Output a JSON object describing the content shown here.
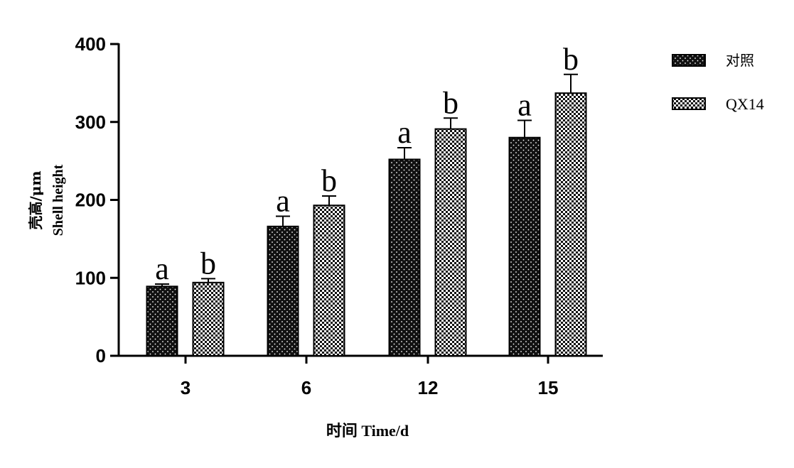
{
  "chart_data": {
    "type": "bar",
    "title": "",
    "xlabel": "时间  Time/d",
    "ylabel_lines": [
      "壳高/μm",
      "Shell height"
    ],
    "categories": [
      "3",
      "6",
      "12",
      "15"
    ],
    "ylim": [
      0,
      400
    ],
    "yticks": [
      0,
      100,
      200,
      300,
      400
    ],
    "grid": false,
    "legend_position": "top-right",
    "series": [
      {
        "name": "对照",
        "pattern": "dark-dotted",
        "values": [
          89,
          166,
          252,
          280
        ],
        "errors": [
          3,
          13,
          15,
          22
        ],
        "letters": [
          "a",
          "a",
          "a",
          "a"
        ]
      },
      {
        "name": "QX14",
        "pattern": "checkered",
        "values": [
          94,
          193,
          291,
          337
        ],
        "errors": [
          5,
          12,
          14,
          24
        ],
        "letters": [
          "b",
          "b",
          "b",
          "b"
        ]
      }
    ],
    "colors": {
      "axis": "#000000",
      "dark_fill": "#111111",
      "dot": "#ffffff",
      "check_dark": "#111111",
      "check_light": "#ffffff"
    }
  }
}
